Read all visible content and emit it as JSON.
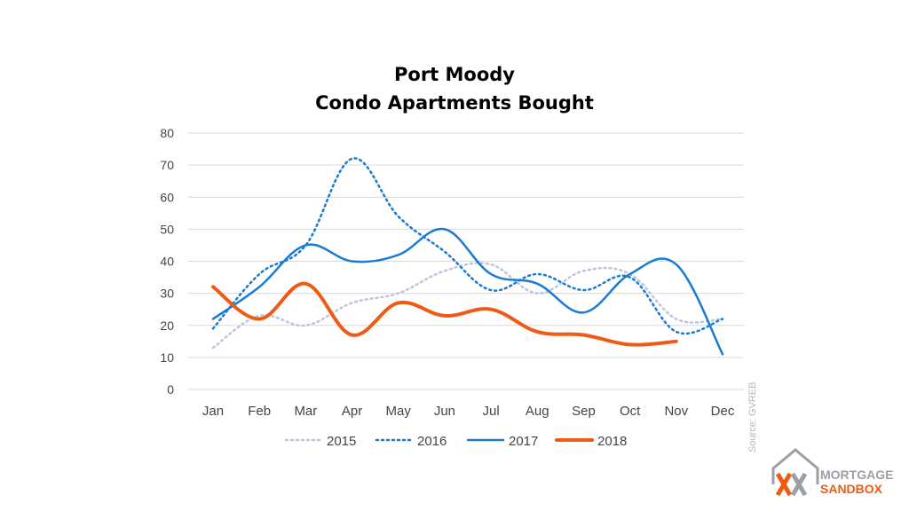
{
  "chart_data": {
    "type": "line",
    "title_lines": [
      "Port Moody",
      "Condo Apartments Bought"
    ],
    "categories": [
      "Jan",
      "Feb",
      "Mar",
      "Apr",
      "May",
      "Jun",
      "Jul",
      "Aug",
      "Sep",
      "Oct",
      "Nov",
      "Dec"
    ],
    "y_ticks": [
      "0",
      "10",
      "20",
      "30",
      "40",
      "50",
      "60",
      "70",
      "80"
    ],
    "ylim": [
      0,
      80
    ],
    "grid": true,
    "legend_position": "bottom",
    "series": [
      {
        "name": "2015",
        "color": "#b9c7dc",
        "style": "dotted",
        "values": [
          13,
          23,
          20,
          27,
          30,
          37,
          39,
          30,
          37,
          36,
          22,
          22
        ]
      },
      {
        "name": "2016",
        "color": "#1a7bd4",
        "style": "dotted",
        "values": [
          19,
          36,
          45,
          72,
          54,
          43,
          31,
          36,
          31,
          35,
          18,
          22
        ]
      },
      {
        "name": "2017",
        "color": "#1a7bd4",
        "style": "solid",
        "values": [
          22,
          32,
          45,
          40,
          42,
          50,
          36,
          33,
          24,
          36,
          39,
          11
        ]
      },
      {
        "name": "2018",
        "color": "#ee5b16",
        "style": "thick",
        "values": [
          32,
          22,
          33,
          17,
          27,
          23,
          25,
          18,
          17,
          14,
          15,
          null
        ]
      }
    ],
    "source_note": "Source: GVREB"
  },
  "logo": {
    "line1": "MORTGAGE",
    "line2": "SANDBOX",
    "colors": {
      "orange": "#ee5b16",
      "gray": "#9aa0a6"
    }
  }
}
